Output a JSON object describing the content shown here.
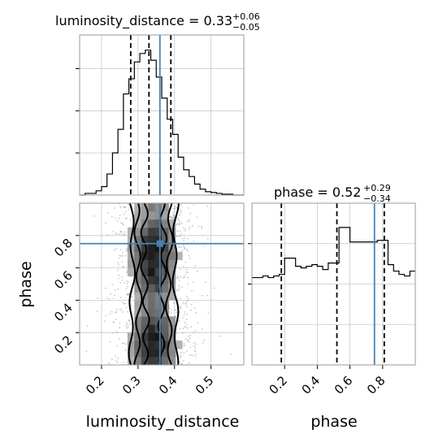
{
  "chart_data": [
    {
      "type": "histogram",
      "panel": "top-left",
      "title": {
        "main": "luminosity_distance = 0.33",
        "sup": "+0.06",
        "sub": "−0.05"
      },
      "xlim": [
        0.14,
        0.59
      ],
      "ylim": [
        0,
        190
      ],
      "bin_edges": [
        0.14,
        0.155,
        0.17,
        0.185,
        0.2,
        0.215,
        0.23,
        0.245,
        0.26,
        0.275,
        0.29,
        0.305,
        0.32,
        0.335,
        0.35,
        0.365,
        0.38,
        0.395,
        0.41,
        0.425,
        0.44,
        0.455,
        0.47,
        0.485,
        0.5,
        0.515,
        0.53,
        0.545,
        0.56,
        0.575,
        0.59
      ],
      "counts": [
        0,
        2,
        2,
        5,
        10,
        25,
        50,
        78,
        120,
        138,
        158,
        168,
        172,
        160,
        140,
        115,
        90,
        72,
        45,
        30,
        22,
        13,
        7,
        4,
        3,
        2,
        1,
        1,
        0,
        0
      ],
      "quantiles": [
        0.28,
        0.33,
        0.39
      ],
      "truth": 0.36,
      "grid": true,
      "colors": {
        "hist": "#000000",
        "quantile": "#000000",
        "truth": "#4682b4"
      }
    },
    {
      "type": "histogram",
      "panel": "bottom-right",
      "title": {
        "main": "phase = 0.52",
        "sup": "+0.29",
        "sub": "−0.34"
      },
      "xlim": [
        0.0,
        1.0
      ],
      "ylim": [
        0,
        100
      ],
      "xticks": [
        "0.2",
        "0.4",
        "0.6",
        "0.8"
      ],
      "bin_edges": [
        0.0,
        0.033,
        0.067,
        0.1,
        0.133,
        0.167,
        0.2,
        0.233,
        0.267,
        0.3,
        0.333,
        0.367,
        0.4,
        0.433,
        0.467,
        0.5,
        0.533,
        0.567,
        0.6,
        0.633,
        0.667,
        0.7,
        0.733,
        0.767,
        0.8,
        0.833,
        0.867,
        0.9,
        0.933,
        0.967,
        1.0
      ],
      "counts": [
        54,
        54,
        55,
        54,
        55,
        56,
        66,
        66,
        61,
        60,
        61,
        62,
        61,
        59,
        63,
        63,
        85,
        85,
        76,
        76,
        76,
        76,
        76,
        77,
        77,
        62,
        58,
        56,
        55,
        58
      ],
      "quantiles": [
        0.18,
        0.52,
        0.81
      ],
      "truth": 0.75,
      "grid": true,
      "xlabel": "phase",
      "colors": {
        "hist": "#000000",
        "quantile": "#000000",
        "truth": "#4682b4"
      }
    },
    {
      "type": "heatmap",
      "panel": "bottom-left",
      "xlim": [
        0.14,
        0.59
      ],
      "ylim": [
        0.0,
        1.0
      ],
      "xticks": [
        "0.2",
        "0.3",
        "0.4",
        "0.5"
      ],
      "yticks": [
        "0.2",
        "0.4",
        "0.6",
        "0.8"
      ],
      "xlabel": "luminosity_distance",
      "ylabel": "phase",
      "truth": {
        "x": 0.36,
        "y": 0.75
      },
      "contour_levels": [
        "outer",
        "middle",
        "inner"
      ],
      "grid": true,
      "colors": {
        "truth": "#4682b4",
        "density": "#000000",
        "contour": "#000000"
      }
    }
  ]
}
